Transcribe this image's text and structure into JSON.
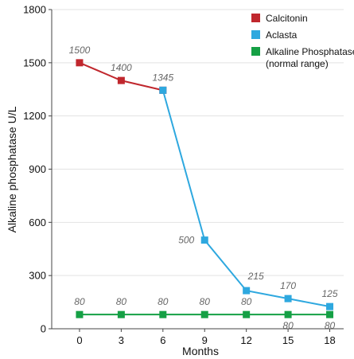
{
  "chart_data": {
    "type": "line",
    "xlabel": "Months",
    "ylabel": "Alkaline phosphatase U/L",
    "x_ticks": [
      0,
      3,
      6,
      9,
      12,
      15,
      18
    ],
    "xlim": [
      -2,
      19
    ],
    "ylim": [
      0,
      1800
    ],
    "y_ticks": [
      0,
      300,
      600,
      900,
      1200,
      1500,
      1800
    ],
    "grid": "horizontal",
    "legend_position": "top-right",
    "series": [
      {
        "name": "Calcitonin",
        "color": "#c0272d",
        "points": [
          {
            "x": 0,
            "y": 1500,
            "label": "1500"
          },
          {
            "x": 3,
            "y": 1400,
            "label": "1400"
          },
          {
            "x": 6,
            "y": 1345,
            "label": "1345"
          }
        ]
      },
      {
        "name": "Aclasta",
        "color": "#2ea8df",
        "points": [
          {
            "x": 6,
            "y": 1345,
            "label": ""
          },
          {
            "x": 9,
            "y": 500,
            "label": "500"
          },
          {
            "x": 12,
            "y": 215,
            "label": "215"
          },
          {
            "x": 15,
            "y": 170,
            "label": "170"
          },
          {
            "x": 18,
            "y": 125,
            "label": "125"
          }
        ]
      },
      {
        "name": "Alkaline Phosphatase",
        "name_line2": "(normal range)",
        "color": "#15a045",
        "points": [
          {
            "x": 0,
            "y": 80,
            "label": "80"
          },
          {
            "x": 3,
            "y": 80,
            "label": "80"
          },
          {
            "x": 6,
            "y": 80,
            "label": "80"
          },
          {
            "x": 9,
            "y": 80,
            "label": "80"
          },
          {
            "x": 12,
            "y": 80,
            "label": "80"
          },
          {
            "x": 15,
            "y": 80,
            "label": "80"
          },
          {
            "x": 18,
            "y": 80,
            "label": "80"
          }
        ]
      }
    ]
  }
}
